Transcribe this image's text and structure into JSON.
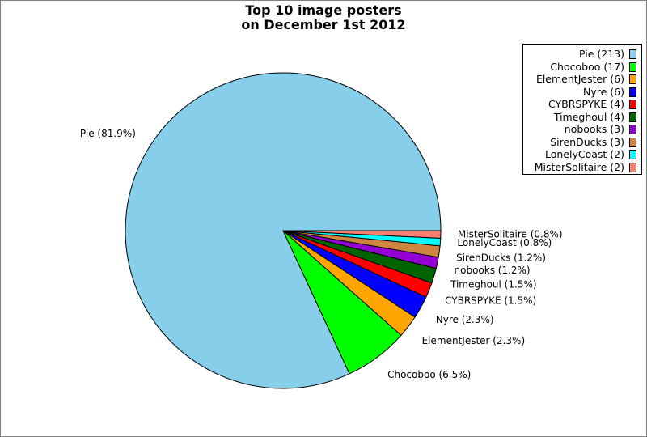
{
  "chart_data": {
    "type": "pie",
    "title_lines": [
      "Top 10 image posters",
      "on December 1st 2012"
    ],
    "legend_position": "top-right",
    "slices": [
      {
        "name": "Pie",
        "value": 213,
        "legend": "Pie (213)",
        "label": "Pie (81.9%)",
        "color": "#87ceeb"
      },
      {
        "name": "Chocoboo",
        "value": 17,
        "legend": "Chocoboo (17)",
        "label": "Chocoboo (6.5%)",
        "color": "#00ff00"
      },
      {
        "name": "ElementJester",
        "value": 6,
        "legend": "ElementJester (6)",
        "label": "ElementJester (2.3%)",
        "color": "#ffa500"
      },
      {
        "name": "Nyre",
        "value": 6,
        "legend": "Nyre (6)",
        "label": "Nyre (2.3%)",
        "color": "#0000ff"
      },
      {
        "name": "CYBRSPYKE",
        "value": 4,
        "legend": "CYBRSPYKE (4)",
        "label": "CYBRSPYKE (1.5%)",
        "color": "#ff0000"
      },
      {
        "name": "Timeghoul",
        "value": 4,
        "legend": "Timeghoul (4)",
        "label": "Timeghoul (1.5%)",
        "color": "#006400"
      },
      {
        "name": "nobooks",
        "value": 3,
        "legend": "nobooks (3)",
        "label": "nobooks (1.2%)",
        "color": "#9400d3"
      },
      {
        "name": "SirenDucks",
        "value": 3,
        "legend": "SirenDucks (3)",
        "label": "SirenDucks (1.2%)",
        "color": "#cd853f"
      },
      {
        "name": "LonelyCoast",
        "value": 2,
        "legend": "LonelyCoast (2)",
        "label": "LonelyCoast (0.8%)",
        "color": "#00ffff"
      },
      {
        "name": "MisterSolitaire",
        "value": 2,
        "legend": "MisterSolitaire (2)",
        "label": "MisterSolitaire (0.8%)",
        "color": "#fa8072"
      }
    ]
  }
}
